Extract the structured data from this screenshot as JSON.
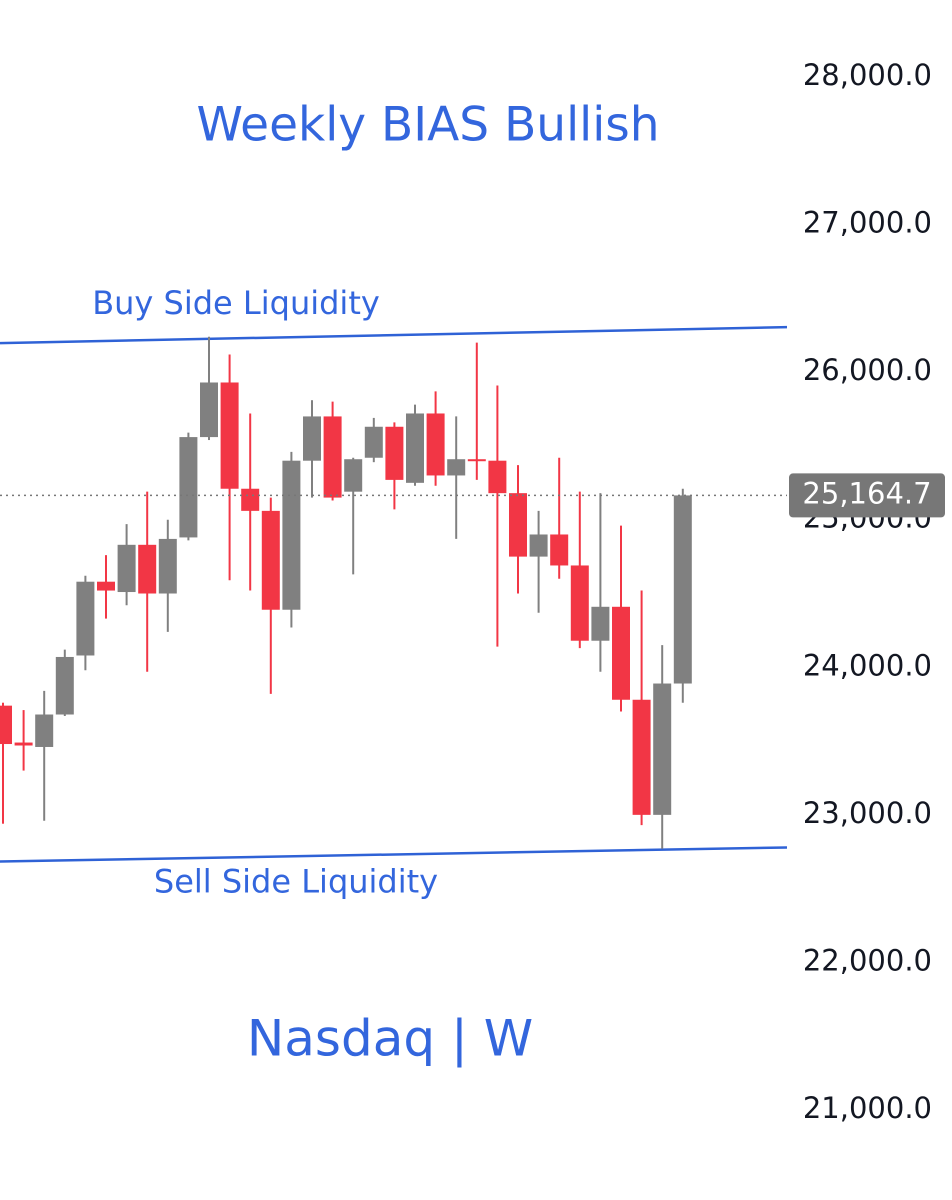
{
  "chart_data": {
    "type": "candlestick",
    "title": "Weekly BIAS Bullish",
    "subtitle": "Nasdaq | W",
    "categories": [
      null,
      null,
      null,
      null,
      null,
      null,
      null,
      null,
      null,
      null,
      null,
      null,
      null,
      null,
      null,
      null,
      null,
      null,
      null,
      null,
      null,
      null,
      null,
      null,
      null,
      null,
      null,
      null,
      null,
      null,
      null,
      null,
      null,
      null
    ],
    "open": [
      23740,
      23490,
      23460,
      23680,
      24080,
      24580,
      24510,
      24830,
      24500,
      24880,
      25560,
      25930,
      25210,
      25060,
      24390,
      25400,
      25700,
      25190,
      25420,
      25630,
      25250,
      25720,
      25300,
      25410,
      25400,
      25180,
      24750,
      24900,
      24690,
      24180,
      24410,
      23780,
      23000,
      23890
    ],
    "high": [
      23760,
      23710,
      23840,
      24120,
      24620,
      24760,
      24970,
      25190,
      25000,
      25590,
      26240,
      26120,
      25720,
      25150,
      25460,
      25810,
      25800,
      25420,
      25690,
      25660,
      25780,
      25870,
      25700,
      26200,
      25910,
      25370,
      25060,
      25420,
      25190,
      25180,
      24960,
      24520,
      24150,
      25210
    ],
    "low": [
      22940,
      23300,
      22960,
      23670,
      23980,
      24330,
      24420,
      23970,
      24240,
      24860,
      25540,
      24590,
      24520,
      23820,
      24270,
      25150,
      25130,
      24630,
      25390,
      25070,
      25230,
      25230,
      24870,
      25270,
      24140,
      24500,
      24370,
      24600,
      24130,
      23970,
      23700,
      22930,
      22770,
      23760
    ],
    "close": [
      23480,
      23470,
      23680,
      24070,
      24580,
      24520,
      24830,
      24500,
      24870,
      25560,
      25930,
      25210,
      25060,
      24390,
      25400,
      25700,
      25150,
      25410,
      25630,
      25270,
      25720,
      25300,
      25410,
      25400,
      25180,
      24750,
      24900,
      24690,
      24180,
      24410,
      23780,
      23000,
      23890,
      25164.7
    ],
    "up_color": "#808080",
    "down_color": "#f23645",
    "line_color": "#2f62d6",
    "text_color": "#3366dd",
    "levels": [
      {
        "label": "Buy Side Liquidity",
        "start": 26197,
        "end": 26305
      },
      {
        "label": "Sell Side Liquidity",
        "start": 22684,
        "end": 22779
      }
    ],
    "last_price": {
      "value": 25164.7,
      "label": "25,164.7"
    },
    "ylim": [
      20390,
      28522
    ],
    "yticks": [
      {
        "value": 21000,
        "label": "21,000.0"
      },
      {
        "value": 22000,
        "label": "22,000.0"
      },
      {
        "value": 23000,
        "label": "23,000.0"
      },
      {
        "value": 24000,
        "label": "24,000.0"
      },
      {
        "value": 25000,
        "label": "25,000.0"
      },
      {
        "value": 26000,
        "label": "26,000.0"
      },
      {
        "value": 27000,
        "label": "27,000.0"
      },
      {
        "value": 28000,
        "label": "28,000.0"
      }
    ]
  }
}
